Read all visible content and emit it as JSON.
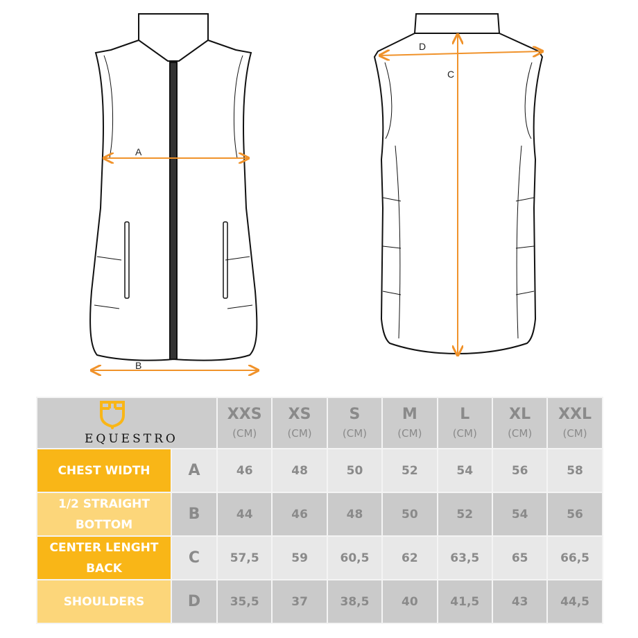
{
  "brand": {
    "name": "EQUESTRO",
    "color": "#f9b617"
  },
  "diagram_labels": {
    "a": "A",
    "b": "B",
    "c": "C",
    "d": "D"
  },
  "colors": {
    "measure_line": "#f0922a",
    "row_primary": "#f9b617",
    "row_secondary": "#fcd67a"
  },
  "table": {
    "sizes": [
      {
        "size": "XXS",
        "unit": "(CM)"
      },
      {
        "size": "XS",
        "unit": "(CM)"
      },
      {
        "size": "S",
        "unit": "(CM)"
      },
      {
        "size": "M",
        "unit": "(CM)"
      },
      {
        "size": "L",
        "unit": "(CM)"
      },
      {
        "size": "XL",
        "unit": "(CM)"
      },
      {
        "size": "XXL",
        "unit": "(CM)"
      }
    ],
    "rows": [
      {
        "label": "CHEST WIDTH",
        "letter": "A",
        "values": [
          "46",
          "48",
          "50",
          "52",
          "54",
          "56",
          "58"
        ]
      },
      {
        "label": "1/2 STRAIGHT BOTTOM",
        "letter": "B",
        "values": [
          "44",
          "46",
          "48",
          "50",
          "52",
          "54",
          "56"
        ]
      },
      {
        "label": "CENTER LENGHT BACK",
        "letter": "C",
        "values": [
          "57,5",
          "59",
          "60,5",
          "62",
          "63,5",
          "65",
          "66,5"
        ]
      },
      {
        "label": "SHOULDERS",
        "letter": "D",
        "values": [
          "35,5",
          "37",
          "38,5",
          "40",
          "41,5",
          "43",
          "44,5"
        ]
      }
    ]
  }
}
